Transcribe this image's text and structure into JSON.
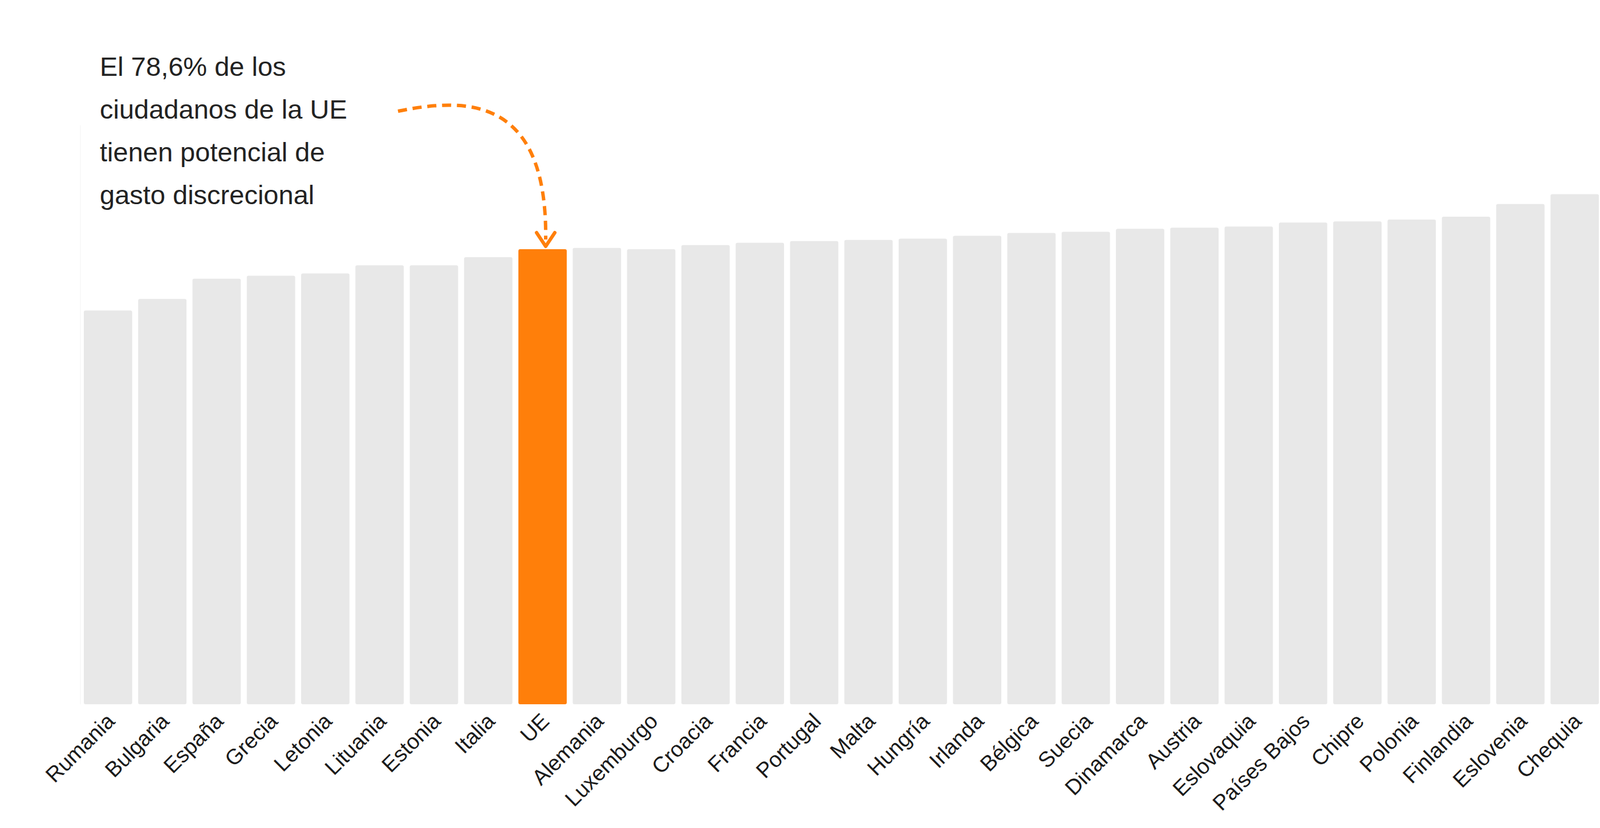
{
  "chart_data": {
    "type": "bar",
    "annotation": "El 78,6% de los\nciudadanos de la UE\ntienen potencial de\ngasto discrecional",
    "categories": [
      "Rumania",
      "Bulgaria",
      "España",
      "Grecia",
      "Letonia",
      "Lituania",
      "Estonia",
      "Italia",
      "UE",
      "Alemania",
      "Luxemburgo",
      "Croacia",
      "Francia",
      "Portugal",
      "Malta",
      "Hungría",
      "Irlanda",
      "Bélgica",
      "Suecia",
      "Dinamarca",
      "Austria",
      "Eslovaquia",
      "Países Bajos",
      "Chipre",
      "Polonia",
      "Finlandia",
      "Eslovenia",
      "Chequia"
    ],
    "values": [
      68.0,
      70.0,
      73.5,
      74.0,
      74.4,
      75.8,
      75.8,
      77.2,
      78.6,
      78.8,
      78.6,
      79.3,
      79.7,
      80.0,
      80.2,
      80.4,
      80.9,
      81.4,
      81.6,
      82.1,
      82.3,
      82.5,
      83.2,
      83.4,
      83.7,
      84.2,
      86.4,
      88.1
    ],
    "colors": [
      "#e8e8e8",
      "#e8e8e8",
      "#e8e8e8",
      "#e8e8e8",
      "#e8e8e8",
      "#e8e8e8",
      "#e8e8e8",
      "#e8e8e8",
      "#ff7f0a",
      "#e8e8e8",
      "#e8e8e8",
      "#e8e8e8",
      "#e8e8e8",
      "#e8e8e8",
      "#e8e8e8",
      "#e8e8e8",
      "#e8e8e8",
      "#e8e8e8",
      "#e8e8e8",
      "#e8e8e8",
      "#e8e8e8",
      "#e8e8e8",
      "#e8e8e8",
      "#e8e8e8",
      "#e8e8e8",
      "#e8e8e8",
      "#e8e8e8",
      "#e8e8e8"
    ],
    "ylim": [
      0,
      100
    ],
    "yticks": [],
    "tick_labels": "x",
    "grid": false
  }
}
